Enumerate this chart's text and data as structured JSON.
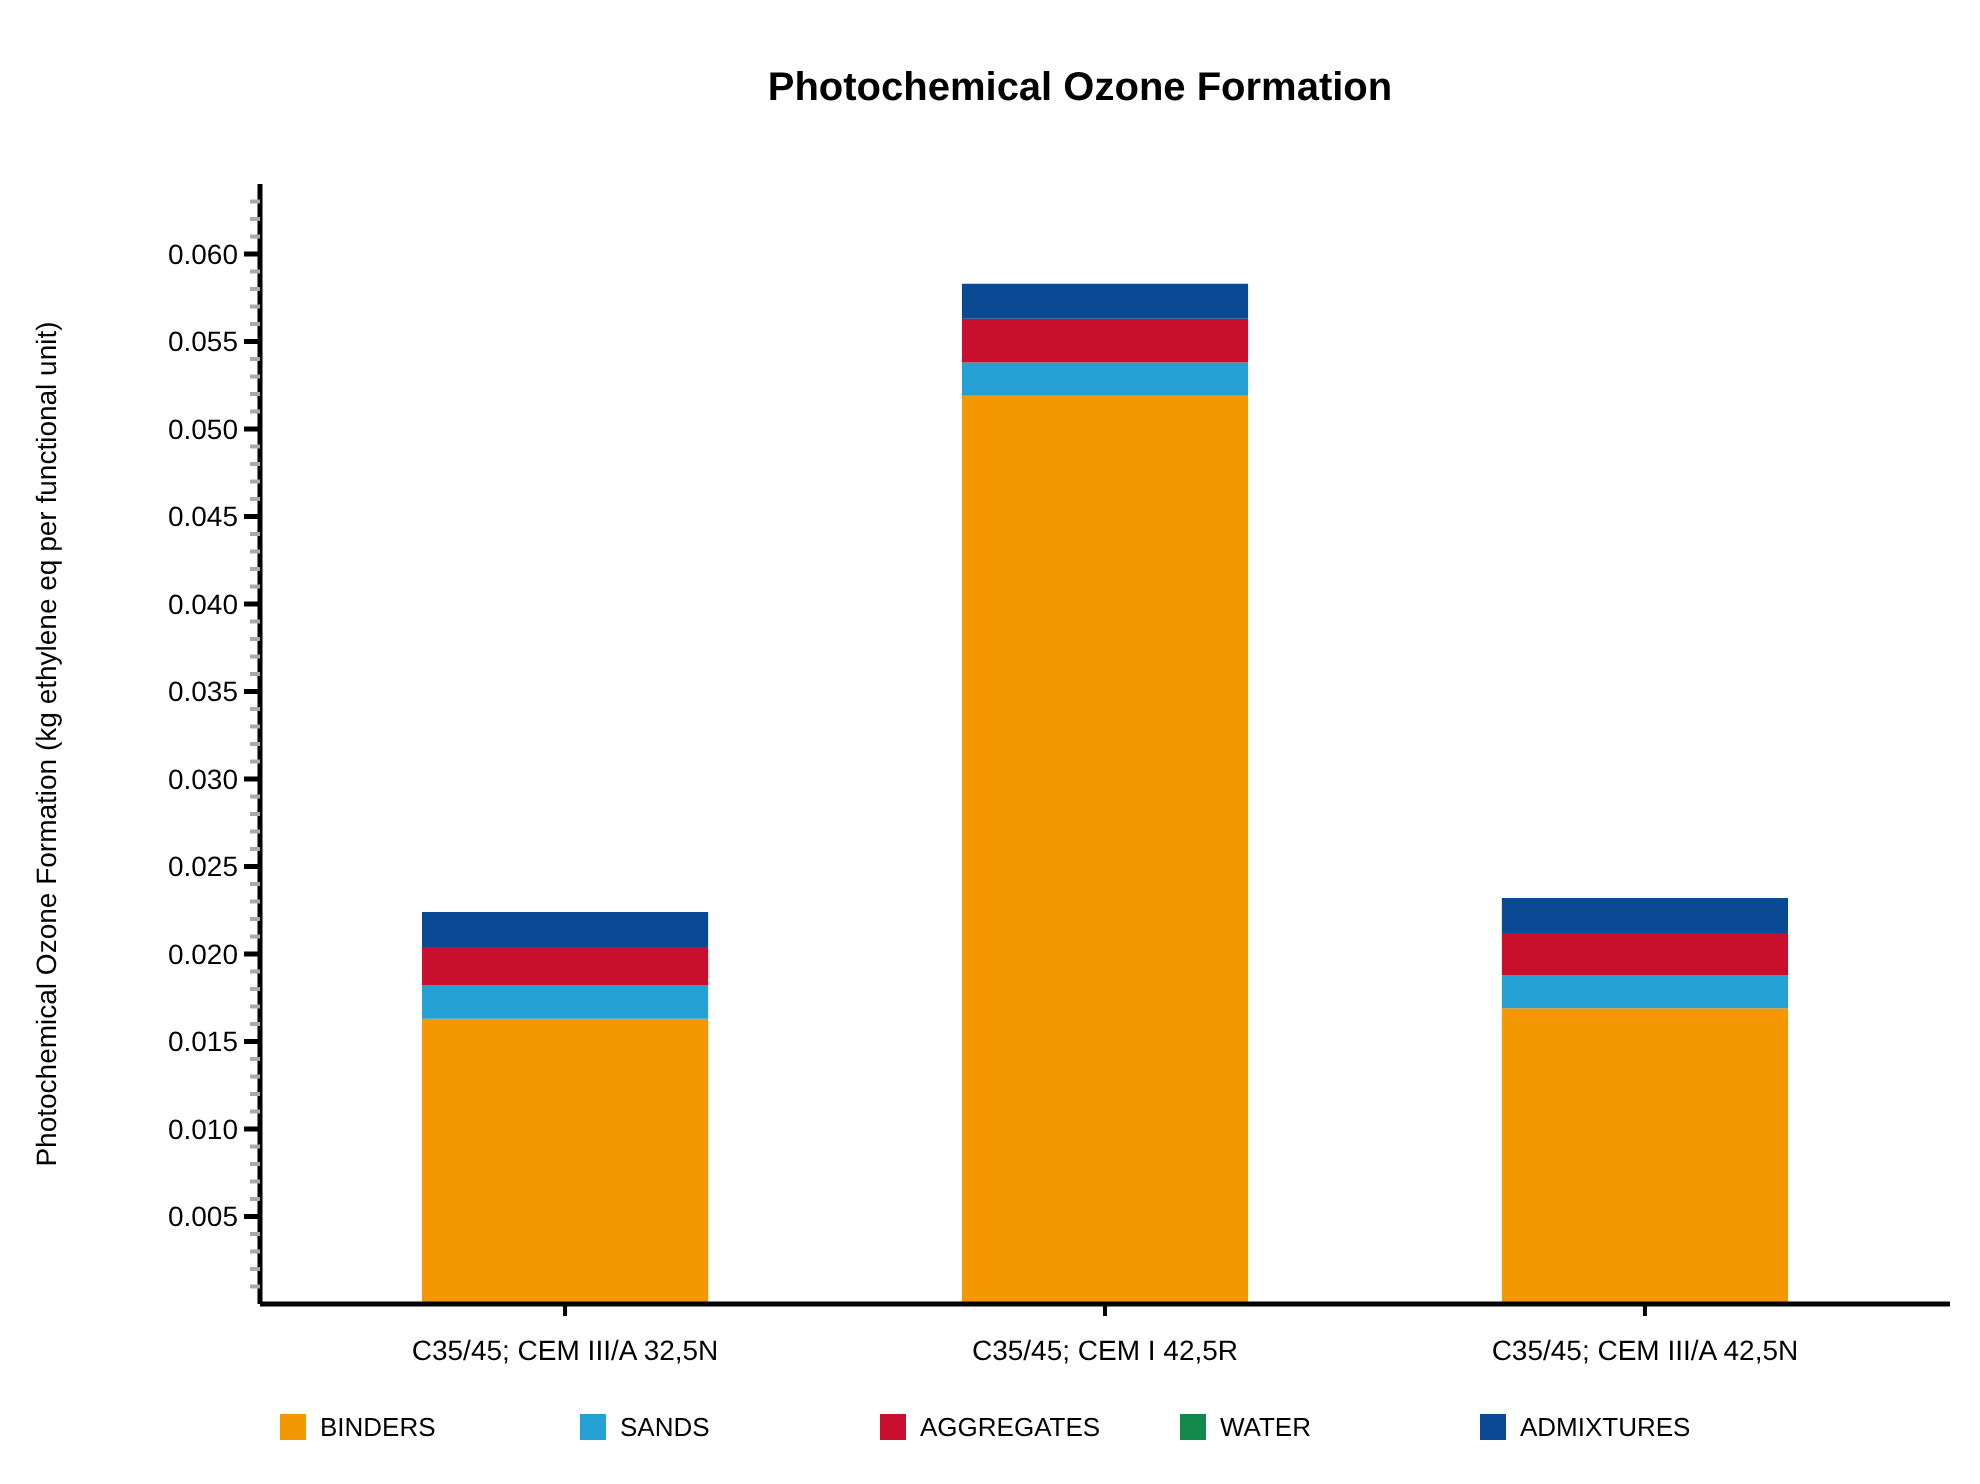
{
  "chart_data": {
    "type": "bar",
    "title": "Photochemical Ozone Formation",
    "ylabel": "Photochemical Ozone Formation (kg ethylene eq per functional unit)",
    "categories": [
      "C35/45; CEM III/A 32,5N",
      "C35/45; CEM I 42,5R",
      "C35/45; CEM III/A 42,5N"
    ],
    "stacked": true,
    "legend": "bottom",
    "grid": false,
    "series": [
      {
        "name": "BINDERS",
        "color": "#f39800",
        "values": [
          0.0163,
          0.0519,
          0.0169
        ]
      },
      {
        "name": "SANDS",
        "color": "#25a0d4",
        "values": [
          0.0019,
          0.0019,
          0.0019
        ]
      },
      {
        "name": "AGGREGATES",
        "color": "#c8102e",
        "values": [
          0.0022,
          0.0025,
          0.0024
        ]
      },
      {
        "name": "WATER",
        "color": "#138a4c",
        "values": [
          0,
          0,
          0
        ]
      },
      {
        "name": "ADMIXTURES",
        "color": "#0a4a94",
        "values": [
          0.002,
          0.002,
          0.002
        ]
      }
    ],
    "ylim": [
      0,
      0.064
    ],
    "yticks": [
      {
        "value": 0.001,
        "label": null
      },
      {
        "value": 0.002,
        "label": null
      },
      {
        "value": 0.003,
        "label": null
      },
      {
        "value": 0.004,
        "label": null
      },
      0.005,
      {
        "value": 0.006,
        "label": null
      },
      {
        "value": 0.007,
        "label": null
      },
      {
        "value": 0.008,
        "label": null
      },
      {
        "value": 0.009,
        "label": null
      },
      {
        "value": 0.01,
        "label": "0.010"
      },
      {
        "value": 0.011,
        "label": null
      },
      {
        "value": 0.012,
        "label": null
      },
      {
        "value": 0.013,
        "label": null
      },
      {
        "value": 0.014,
        "label": null
      },
      0.015,
      {
        "value": 0.016,
        "label": null
      },
      {
        "value": 0.017,
        "label": null
      },
      {
        "value": 0.018,
        "label": null
      },
      {
        "value": 0.019,
        "label": null
      },
      {
        "value": 0.02,
        "label": "0.020"
      },
      {
        "value": 0.021,
        "label": null
      },
      {
        "value": 0.022,
        "label": null
      },
      {
        "value": 0.023,
        "label": null
      },
      {
        "value": 0.024,
        "label": null
      },
      0.025,
      {
        "value": 0.026,
        "label": null
      },
      {
        "value": 0.027,
        "label": null
      },
      {
        "value": 0.028,
        "label": null
      },
      {
        "value": 0.029,
        "label": null
      },
      {
        "value": 0.03,
        "label": "0.030"
      },
      {
        "value": 0.031,
        "label": null
      },
      {
        "value": 0.032,
        "label": null
      },
      {
        "value": 0.033,
        "label": null
      },
      {
        "value": 0.034,
        "label": null
      },
      0.035,
      {
        "value": 0.036,
        "label": null
      },
      {
        "value": 0.037,
        "label": null
      },
      {
        "value": 0.038,
        "label": null
      },
      {
        "value": 0.039,
        "label": null
      },
      {
        "value": 0.04,
        "label": "0.040"
      },
      {
        "value": 0.041,
        "label": null
      },
      {
        "value": 0.042,
        "label": null
      },
      {
        "value": 0.043,
        "label": null
      },
      {
        "value": 0.044,
        "label": null
      },
      0.045,
      {
        "value": 0.046,
        "label": null
      },
      {
        "value": 0.047,
        "label": null
      },
      {
        "value": 0.048,
        "label": null
      },
      {
        "value": 0.049,
        "label": null
      },
      {
        "value": 0.05,
        "label": "0.050"
      },
      {
        "value": 0.051,
        "label": null
      },
      {
        "value": 0.052,
        "label": null
      },
      {
        "value": 0.053,
        "label": null
      },
      {
        "value": 0.054,
        "label": null
      },
      0.055,
      {
        "value": 0.056,
        "label": null
      },
      {
        "value": 0.057,
        "label": null
      },
      {
        "value": 0.058,
        "label": null
      },
      {
        "value": 0.059,
        "label": null
      },
      {
        "value": 0.06,
        "label": "0.060"
      },
      {
        "value": 0.061,
        "label": null
      },
      {
        "value": 0.062,
        "label": null
      },
      {
        "value": 0.063,
        "label": null
      }
    ]
  }
}
